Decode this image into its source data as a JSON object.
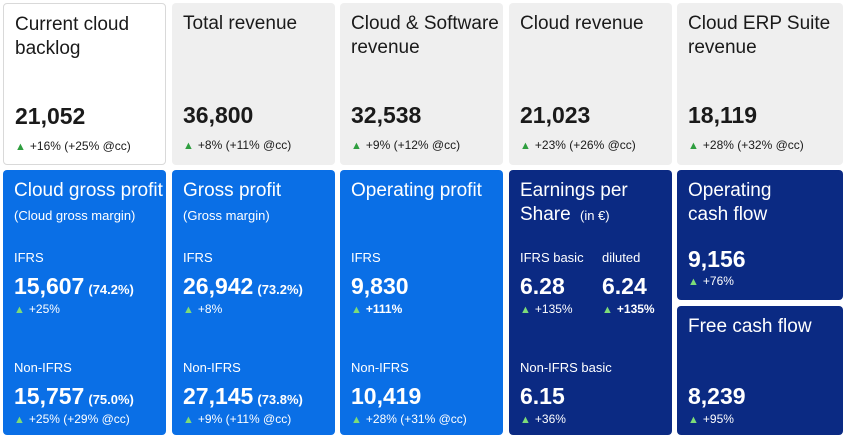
{
  "top": [
    {
      "title": "Current cloud backlog",
      "value": "21,052",
      "change": "+16% (+25% @cc)"
    },
    {
      "title": "Total revenue",
      "value": "36,800",
      "change": "+8% (+11% @cc)"
    },
    {
      "title": "Cloud & Software revenue",
      "value": "32,538",
      "change": "+9% (+12% @cc)"
    },
    {
      "title": "Cloud revenue",
      "value": "21,023",
      "change": "+23% (+26% @cc)"
    },
    {
      "title": "Cloud ERP Suite revenue",
      "value": "18,119",
      "change": "+28% (+32% @cc)"
    }
  ],
  "cgp": {
    "title": "Cloud gross profit",
    "subtitle": "(Cloud gross margin)",
    "ifrs_label": "IFRS",
    "ifrs_value": "15,607",
    "ifrs_pct": "(74.2%)",
    "ifrs_change": "+25%",
    "non_label": "Non-IFRS",
    "non_value": "15,757",
    "non_pct": "(75.0%)",
    "non_change": "+25% (+29% @cc)"
  },
  "gp": {
    "title": "Gross profit",
    "subtitle": "(Gross margin)",
    "ifrs_label": "IFRS",
    "ifrs_value": "26,942",
    "ifrs_pct": "(73.2%)",
    "ifrs_change": "+8%",
    "non_label": "Non-IFRS",
    "non_value": "27,145",
    "non_pct": "(73.8%)",
    "non_change": "+9% (+11% @cc)"
  },
  "op": {
    "title": "Operating profit",
    "ifrs_label": "IFRS",
    "ifrs_value": "9,830",
    "ifrs_change": "+111%",
    "non_label": "Non-IFRS",
    "non_value": "10,419",
    "non_change": "+28% (+31% @cc)"
  },
  "eps": {
    "title_line1": "Earnings per",
    "title_line2": "Share",
    "unit": "(in €)",
    "basic_label": "IFRS basic",
    "basic_value": "6.28",
    "basic_change": "+135%",
    "diluted_label": "diluted",
    "diluted_value": "6.24",
    "diluted_change": "+135%",
    "non_label": "Non-IFRS basic",
    "non_value": "6.15",
    "non_change": "+36%"
  },
  "ocf": {
    "title": "Operating cash flow",
    "value": "9,156",
    "change": "+76%"
  },
  "fcf": {
    "title": "Free cash flow",
    "value": "8,239",
    "change": "+95%"
  },
  "colors": {
    "grey": "#efefef",
    "blue": "#0a6fe6",
    "navy": "#0b2a83",
    "up_green": "#2f9e3f"
  }
}
